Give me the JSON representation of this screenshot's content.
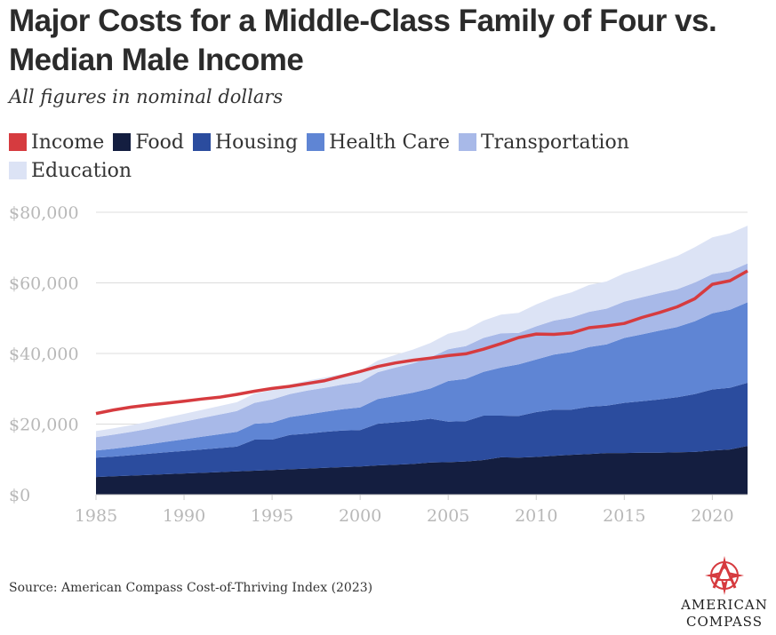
{
  "title": "Major Costs for a Middle-Class Family of Four vs. Median Male Income",
  "subtitle": "All figures in nominal dollars",
  "source": "Source: American Compass Cost-of-Thriving Index (2023)",
  "logo": {
    "line1": "AMERICAN",
    "line2": "COMPASS",
    "color": "#d63b3f"
  },
  "chart_data": {
    "type": "area",
    "stacked": true,
    "x": [
      1985,
      1986,
      1987,
      1988,
      1989,
      1990,
      1991,
      1992,
      1993,
      1994,
      1995,
      1996,
      1997,
      1998,
      1999,
      2000,
      2001,
      2002,
      2003,
      2004,
      2005,
      2006,
      2007,
      2008,
      2009,
      2010,
      2011,
      2012,
      2013,
      2014,
      2015,
      2016,
      2017,
      2018,
      2019,
      2020,
      2021,
      2022
    ],
    "xlim": [
      1985,
      2022
    ],
    "ylim": [
      0,
      80000
    ],
    "xticks": [
      1985,
      1990,
      1995,
      2000,
      2005,
      2010,
      2015,
      2020
    ],
    "yticks": [
      0,
      20000,
      40000,
      60000,
      80000
    ],
    "ytick_labels": [
      "$0",
      "$20,000",
      "$40,000",
      "$60,000",
      "$80,000"
    ],
    "grid": true,
    "legend_position": "top-left",
    "series": [
      {
        "name": "Food",
        "color": "#141e40",
        "values": [
          5000,
          5200,
          5400,
          5600,
          5800,
          6000,
          6200,
          6400,
          6600,
          6800,
          7000,
          7200,
          7400,
          7600,
          7800,
          8000,
          8300,
          8500,
          8700,
          9100,
          9200,
          9400,
          9800,
          10600,
          10500,
          10700,
          11000,
          11300,
          11500,
          11800,
          11800,
          11900,
          11900,
          12000,
          12100,
          12500,
          12800,
          13800
        ]
      },
      {
        "name": "Housing",
        "color": "#2b4c9e",
        "values": [
          5500,
          5600,
          5800,
          6000,
          6200,
          6400,
          6600,
          6800,
          7000,
          8800,
          8600,
          9700,
          9900,
          10200,
          10400,
          10300,
          11800,
          12000,
          12200,
          12400,
          11500,
          11400,
          12600,
          11800,
          11800,
          12700,
          13100,
          12800,
          13400,
          13400,
          14200,
          14600,
          15100,
          15600,
          16400,
          17300,
          17500,
          17900
        ]
      },
      {
        "name": "Health Care",
        "color": "#5f85d4",
        "values": [
          2000,
          2200,
          2400,
          2700,
          3000,
          3300,
          3600,
          3900,
          4200,
          4500,
          4800,
          5100,
          5400,
          5700,
          6000,
          6400,
          7000,
          7500,
          8000,
          8600,
          11500,
          12000,
          12400,
          13600,
          14600,
          14900,
          15600,
          16300,
          16900,
          17400,
          18400,
          18900,
          19500,
          19900,
          20600,
          21600,
          22100,
          22800
        ]
      },
      {
        "name": "Transportation",
        "color": "#a8b9e8",
        "values": [
          3800,
          4000,
          4200,
          4400,
          4700,
          5000,
          5300,
          5600,
          5900,
          5900,
          6600,
          6500,
          6800,
          6800,
          7000,
          7200,
          7600,
          8000,
          8300,
          8800,
          9000,
          9300,
          9600,
          9700,
          8900,
          9400,
          9600,
          9800,
          10000,
          10100,
          10300,
          10500,
          10600,
          10700,
          11000,
          11100,
          10900,
          11000
        ]
      },
      {
        "name": "Education",
        "color": "#dce3f5",
        "values": [
          1700,
          1800,
          1900,
          2000,
          2100,
          2200,
          2300,
          2400,
          2500,
          2600,
          2600,
          2700,
          2800,
          2900,
          3000,
          3100,
          3300,
          3600,
          3900,
          4100,
          4400,
          4600,
          4900,
          5300,
          5700,
          6200,
          6600,
          7100,
          7600,
          7700,
          8000,
          8300,
          8800,
          9400,
          10000,
          10400,
          10700,
          10700
        ]
      }
    ],
    "line_series": {
      "name": "Income",
      "color": "#d63b3f",
      "values": [
        23000,
        24000,
        24800,
        25400,
        25900,
        26500,
        27100,
        27600,
        28400,
        29300,
        30100,
        30700,
        31500,
        32300,
        33600,
        34900,
        36300,
        37300,
        38100,
        38700,
        39400,
        39900,
        41200,
        42800,
        44500,
        45500,
        45400,
        45800,
        47300,
        47800,
        48500,
        50200,
        51600,
        53200,
        55500,
        59600,
        60600,
        63400
      ]
    },
    "legend": [
      {
        "name": "Income",
        "color": "#d63b3f"
      },
      {
        "name": "Food",
        "color": "#141e40"
      },
      {
        "name": "Housing",
        "color": "#2b4c9e"
      },
      {
        "name": "Health Care",
        "color": "#5f85d4"
      },
      {
        "name": "Transportation",
        "color": "#a8b9e8"
      },
      {
        "name": "Education",
        "color": "#dce3f5"
      }
    ]
  }
}
